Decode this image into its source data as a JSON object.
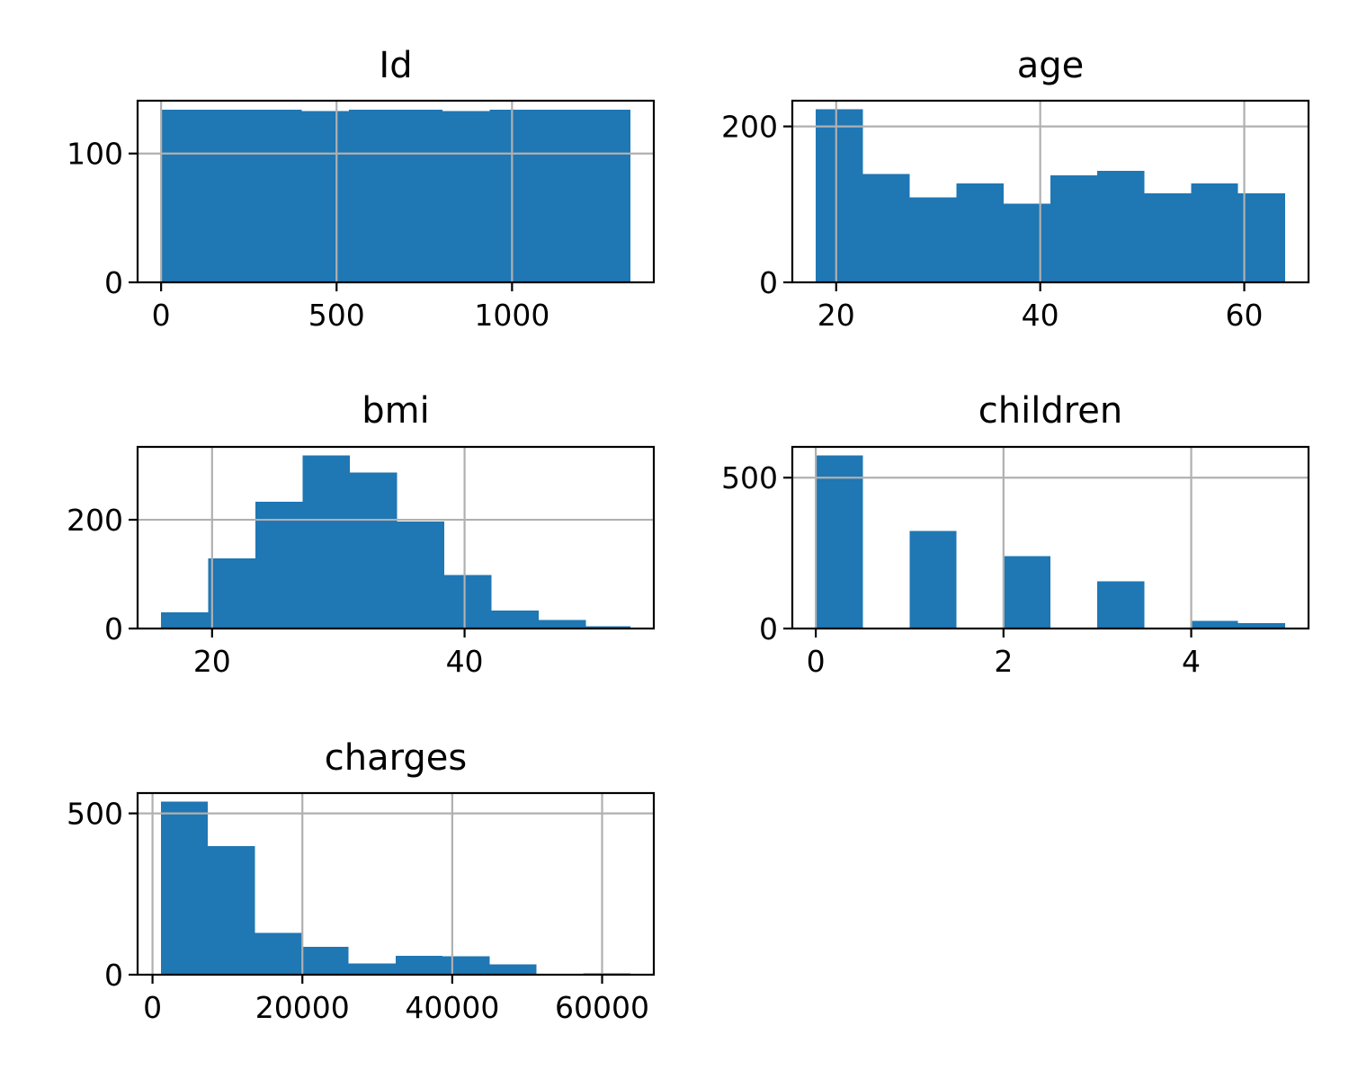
{
  "colors": {
    "bar": "#1f77b4",
    "grid": "#b0b0b0",
    "axis": "#000000",
    "background": "#ffffff"
  },
  "chart_data": [
    {
      "type": "bar",
      "title": "Id",
      "xlabel": "",
      "ylabel": "",
      "grid": true,
      "bin_edges": [
        0,
        133.7,
        267.4,
        401.1,
        534.8,
        668.5,
        802.2,
        935.9,
        1069.6,
        1203.3,
        1337
      ],
      "values": [
        134,
        134,
        134,
        133,
        134,
        134,
        133,
        134,
        134,
        134
      ],
      "xlim": [
        -67,
        1404
      ],
      "ylim": [
        0,
        141
      ],
      "xticks": [
        0,
        500,
        1000
      ],
      "xtick_labels": [
        "0",
        "500",
        "1000"
      ],
      "yticks": [
        0,
        100
      ],
      "ytick_labels": [
        "0",
        "100"
      ]
    },
    {
      "type": "bar",
      "title": "age",
      "xlabel": "",
      "ylabel": "",
      "grid": true,
      "bin_edges": [
        18,
        22.6,
        27.2,
        31.8,
        36.4,
        41,
        45.6,
        50.2,
        54.8,
        59.4,
        64
      ],
      "values": [
        222,
        139,
        109,
        127,
        101,
        137,
        143,
        114,
        127,
        114
      ],
      "xlim": [
        15.7,
        66.3
      ],
      "ylim": [
        0,
        233
      ],
      "xticks": [
        20,
        40,
        60
      ],
      "xtick_labels": [
        "20",
        "40",
        "60"
      ],
      "yticks": [
        0,
        200
      ],
      "ytick_labels": [
        "0",
        "200"
      ]
    },
    {
      "type": "bar",
      "title": "bmi",
      "xlabel": "",
      "ylabel": "",
      "grid": true,
      "bin_edges": [
        15.96,
        19.7,
        23.44,
        27.18,
        30.92,
        34.66,
        38.4,
        42.14,
        45.88,
        49.62,
        53.13
      ],
      "values": [
        30,
        129,
        233,
        318,
        287,
        197,
        98,
        33,
        16,
        4
      ],
      "xlim": [
        14.1,
        54.99
      ],
      "ylim": [
        0,
        334
      ],
      "xticks": [
        20,
        40
      ],
      "xtick_labels": [
        "20",
        "40"
      ],
      "yticks": [
        0,
        200
      ],
      "ytick_labels": [
        "0",
        "200"
      ]
    },
    {
      "type": "bar",
      "title": "children",
      "xlabel": "",
      "ylabel": "",
      "grid": true,
      "bin_edges": [
        0,
        0.5,
        1,
        1.5,
        2,
        2.5,
        3,
        3.5,
        4,
        4.5,
        5
      ],
      "values": [
        574,
        0,
        324,
        0,
        240,
        0,
        157,
        0,
        25,
        18
      ],
      "xlim": [
        -0.25,
        5.25
      ],
      "ylim": [
        0,
        602
      ],
      "xticks": [
        0,
        2,
        4
      ],
      "xtick_labels": [
        "0",
        "2",
        "4"
      ],
      "yticks": [
        0,
        500
      ],
      "ytick_labels": [
        "0",
        "500"
      ]
    },
    {
      "type": "bar",
      "title": "charges",
      "xlabel": "",
      "ylabel": "",
      "grid": true,
      "bin_edges": [
        1121.87,
        7386.73,
        13651.59,
        19916.44,
        26181.3,
        32446.16,
        38711.01,
        44975.87,
        51240.73,
        57505.59,
        63770.43
      ],
      "values": [
        536,
        398,
        129,
        86,
        35,
        59,
        57,
        32,
        2,
        4
      ],
      "xlim": [
        -1990,
        66900
      ],
      "ylim": [
        0,
        563
      ],
      "xticks": [
        0,
        20000,
        40000,
        60000
      ],
      "xtick_labels": [
        "0",
        "20000",
        "40000",
        "60000"
      ],
      "yticks": [
        0,
        500
      ],
      "ytick_labels": [
        "0",
        "500"
      ]
    }
  ]
}
